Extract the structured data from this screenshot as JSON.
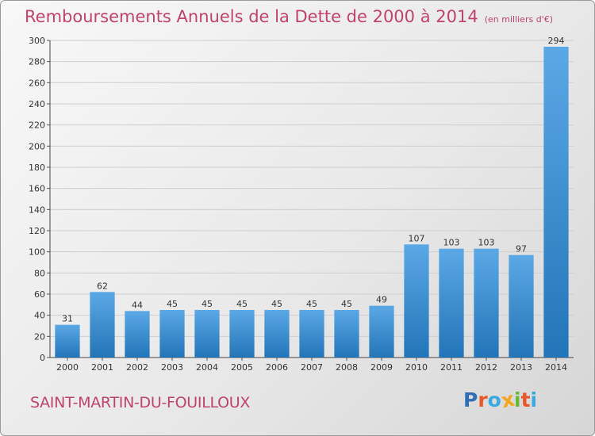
{
  "title": "Remboursements Annuels de la Dette de 2000 à 2014",
  "subtitle": "(en milliers d'€)",
  "commune": "SAINT-MARTIN-DU-FOUILLOUX",
  "logo": {
    "text": "Proxiti",
    "letter_colors": [
      "#2f6fb5",
      "#e8582b",
      "#3aa9df",
      "#f2a61c",
      "#67b834",
      "#e8582b",
      "#3aa9df"
    ]
  },
  "colors": {
    "title": "#c0446a",
    "bar_light": "#5ba8e6",
    "bar_dark": "#2275b8",
    "text": "#333333",
    "grid": "#cfcfcf"
  },
  "chart_data": {
    "type": "bar",
    "title": "Remboursements Annuels de la Dette de 2000 à 2014",
    "subtitle": "(en milliers d'€)",
    "xlabel": "",
    "ylabel": "",
    "categories": [
      "2000",
      "2001",
      "2002",
      "2003",
      "2004",
      "2005",
      "2006",
      "2007",
      "2008",
      "2009",
      "2010",
      "2011",
      "2012",
      "2013",
      "2014"
    ],
    "values": [
      31,
      62,
      44,
      45,
      45,
      45,
      45,
      45,
      45,
      49,
      107,
      103,
      103,
      97,
      294
    ],
    "ylim": [
      0,
      300
    ],
    "yticks": [
      0,
      20,
      40,
      60,
      80,
      100,
      120,
      140,
      160,
      180,
      200,
      220,
      240,
      260,
      280,
      300
    ],
    "grid": true,
    "data_labels": true
  }
}
